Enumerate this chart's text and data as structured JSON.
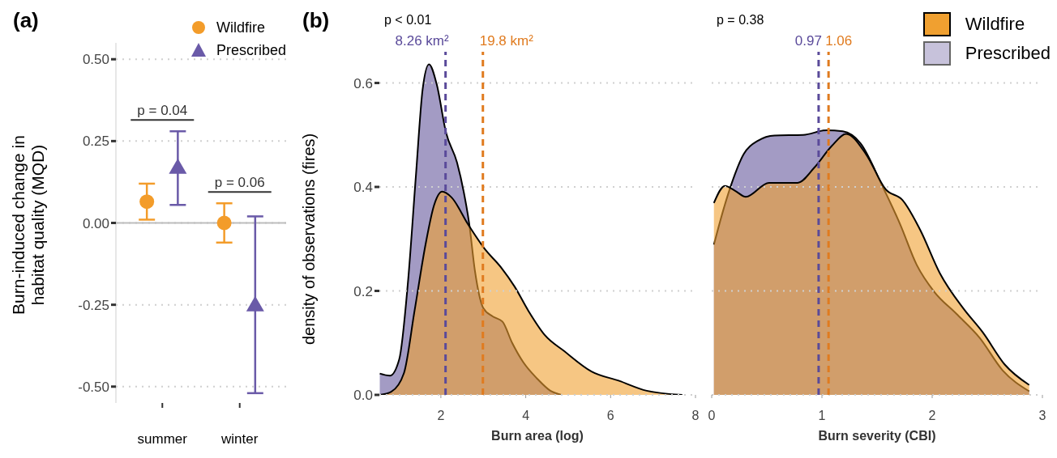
{
  "chart_data": [
    {
      "type": "scatter",
      "title": "(a)",
      "ylabel": "Burn-induced change in habitat quality (MQD)",
      "categories": [
        "summer",
        "winter"
      ],
      "series": [
        {
          "name": "Wildfire",
          "color": "#f39c2a",
          "marker": "circle",
          "values": [
            0.065,
            0.0
          ],
          "errors": [
            [
              0.01,
              0.12
            ],
            [
              -0.06,
              0.06
            ]
          ]
        },
        {
          "name": "Prescribed",
          "color": "#6a5aa8",
          "marker": "triangle",
          "values": [
            0.17,
            -0.25
          ],
          "errors": [
            [
              0.055,
              0.28
            ],
            [
              -0.52,
              0.02
            ]
          ]
        }
      ],
      "ylim": [
        -0.55,
        0.55
      ],
      "yticks": [
        {
          "value": -0.5,
          "label": "-0.50"
        },
        {
          "value": -0.25,
          "label": "-0.25"
        },
        {
          "value": 0,
          "label": "0.00"
        },
        {
          "value": 0.25,
          "label": "0.25"
        },
        {
          "value": 0.5,
          "label": "0.50"
        }
      ],
      "grid": "y",
      "legend": "top right",
      "ref_lines": [
        {
          "axis": "y",
          "value": 0,
          "color": "#bdbdbd"
        }
      ],
      "annotations": [
        "p = 0.04",
        "p = 0.06"
      ]
    },
    {
      "type": "area",
      "title": "(b)",
      "xlabel": "Burn area (log)",
      "ylabel": "density of observations (fires)",
      "series": [
        {
          "color": "#f0a030",
          "x": [
            0.56,
            0.83,
            1.13,
            1.38,
            1.64,
            1.84,
            2.03,
            2.25,
            2.64,
            3.03,
            3.42,
            3.74,
            4.06,
            4.45,
            4.91,
            5.55,
            6.2,
            6.85,
            7.69
          ],
          "values": [
            0,
            0.006,
            0.042,
            0.162,
            0.29,
            0.365,
            0.391,
            0.38,
            0.328,
            0.281,
            0.245,
            0.208,
            0.162,
            0.115,
            0.084,
            0.045,
            0.027,
            0.008,
            0
          ]
        },
        {
          "color": "#a39bc4",
          "x": [
            0.56,
            0.8,
            1.02,
            1.22,
            1.41,
            1.57,
            1.72,
            1.9,
            2.12,
            2.38,
            2.54,
            2.67,
            2.8,
            3.0,
            3.22,
            3.45,
            3.68,
            3.94,
            4.26,
            4.58,
            4.84
          ],
          "values": [
            0.041,
            0.037,
            0.069,
            0.213,
            0.42,
            0.588,
            0.636,
            0.598,
            0.505,
            0.447,
            0.39,
            0.328,
            0.24,
            0.167,
            0.151,
            0.141,
            0.1,
            0.063,
            0.032,
            0.008,
            0
          ]
        }
      ],
      "xlim": [
        0.55,
        8
      ],
      "xticks": [
        2,
        4,
        6,
        8
      ],
      "ylim": [
        0,
        0.66
      ],
      "yticks": [
        {
          "value": 0,
          "label": "0.0"
        },
        {
          "value": 0.2,
          "label": "0.2"
        },
        {
          "value": 0.4,
          "label": "0.4"
        },
        {
          "value": 0.6,
          "label": "0.6"
        }
      ],
      "grid": "y",
      "ref_lines": [
        {
          "axis": "x",
          "value": 2.11,
          "label": "8.26 km²",
          "color": "#5a4a9a",
          "line_style": "dashed"
        },
        {
          "axis": "x",
          "value": 2.99,
          "label": "19.8 km²",
          "color": "#e07b1f",
          "line_style": "dashed"
        }
      ],
      "annotations": [
        "p < 0.01"
      ]
    },
    {
      "type": "area",
      "xlabel": "Burn severity (CBI)",
      "series": [
        {
          "name": "Wildfire",
          "color": "#f0a030",
          "x": [
            0.02,
            0.12,
            0.21,
            0.31,
            0.52,
            0.78,
            0.93,
            1.09,
            1.22,
            1.4,
            1.58,
            1.73,
            1.89,
            2.07,
            2.28,
            2.46,
            2.66,
            2.88
          ],
          "values": [
            0.369,
            0.402,
            0.393,
            0.381,
            0.408,
            0.408,
            0.437,
            0.479,
            0.502,
            0.463,
            0.395,
            0.375,
            0.318,
            0.234,
            0.167,
            0.12,
            0.058,
            0.019
          ]
        },
        {
          "name": "Prescribed",
          "color": "#a39bc4",
          "x": [
            0.02,
            0.11,
            0.18,
            0.29,
            0.42,
            0.57,
            0.83,
            1.04,
            1.19,
            1.35,
            1.55,
            1.71,
            1.86,
            2.02,
            2.22,
            2.43,
            2.64,
            2.88
          ],
          "values": [
            0.289,
            0.359,
            0.406,
            0.463,
            0.489,
            0.499,
            0.5,
            0.509,
            0.507,
            0.484,
            0.401,
            0.328,
            0.25,
            0.198,
            0.156,
            0.11,
            0.047,
            0.007
          ]
        }
      ],
      "xlim": [
        0,
        3
      ],
      "xticks": [
        0,
        1,
        2,
        3
      ],
      "ylim": [
        0,
        0.66
      ],
      "yticks": [
        0,
        0.2,
        0.4,
        0.6
      ],
      "tick_labels": "x",
      "grid": "y",
      "legend": "top right",
      "ref_lines": [
        {
          "axis": "x",
          "value": 0.97,
          "label": "0.97",
          "color": "#5a4a9a",
          "line_style": "dashed"
        },
        {
          "axis": "x",
          "value": 1.06,
          "label": "1.06",
          "color": "#e07b1f",
          "line_style": "dashed"
        }
      ],
      "annotations": [
        "p = 0.38"
      ]
    }
  ]
}
